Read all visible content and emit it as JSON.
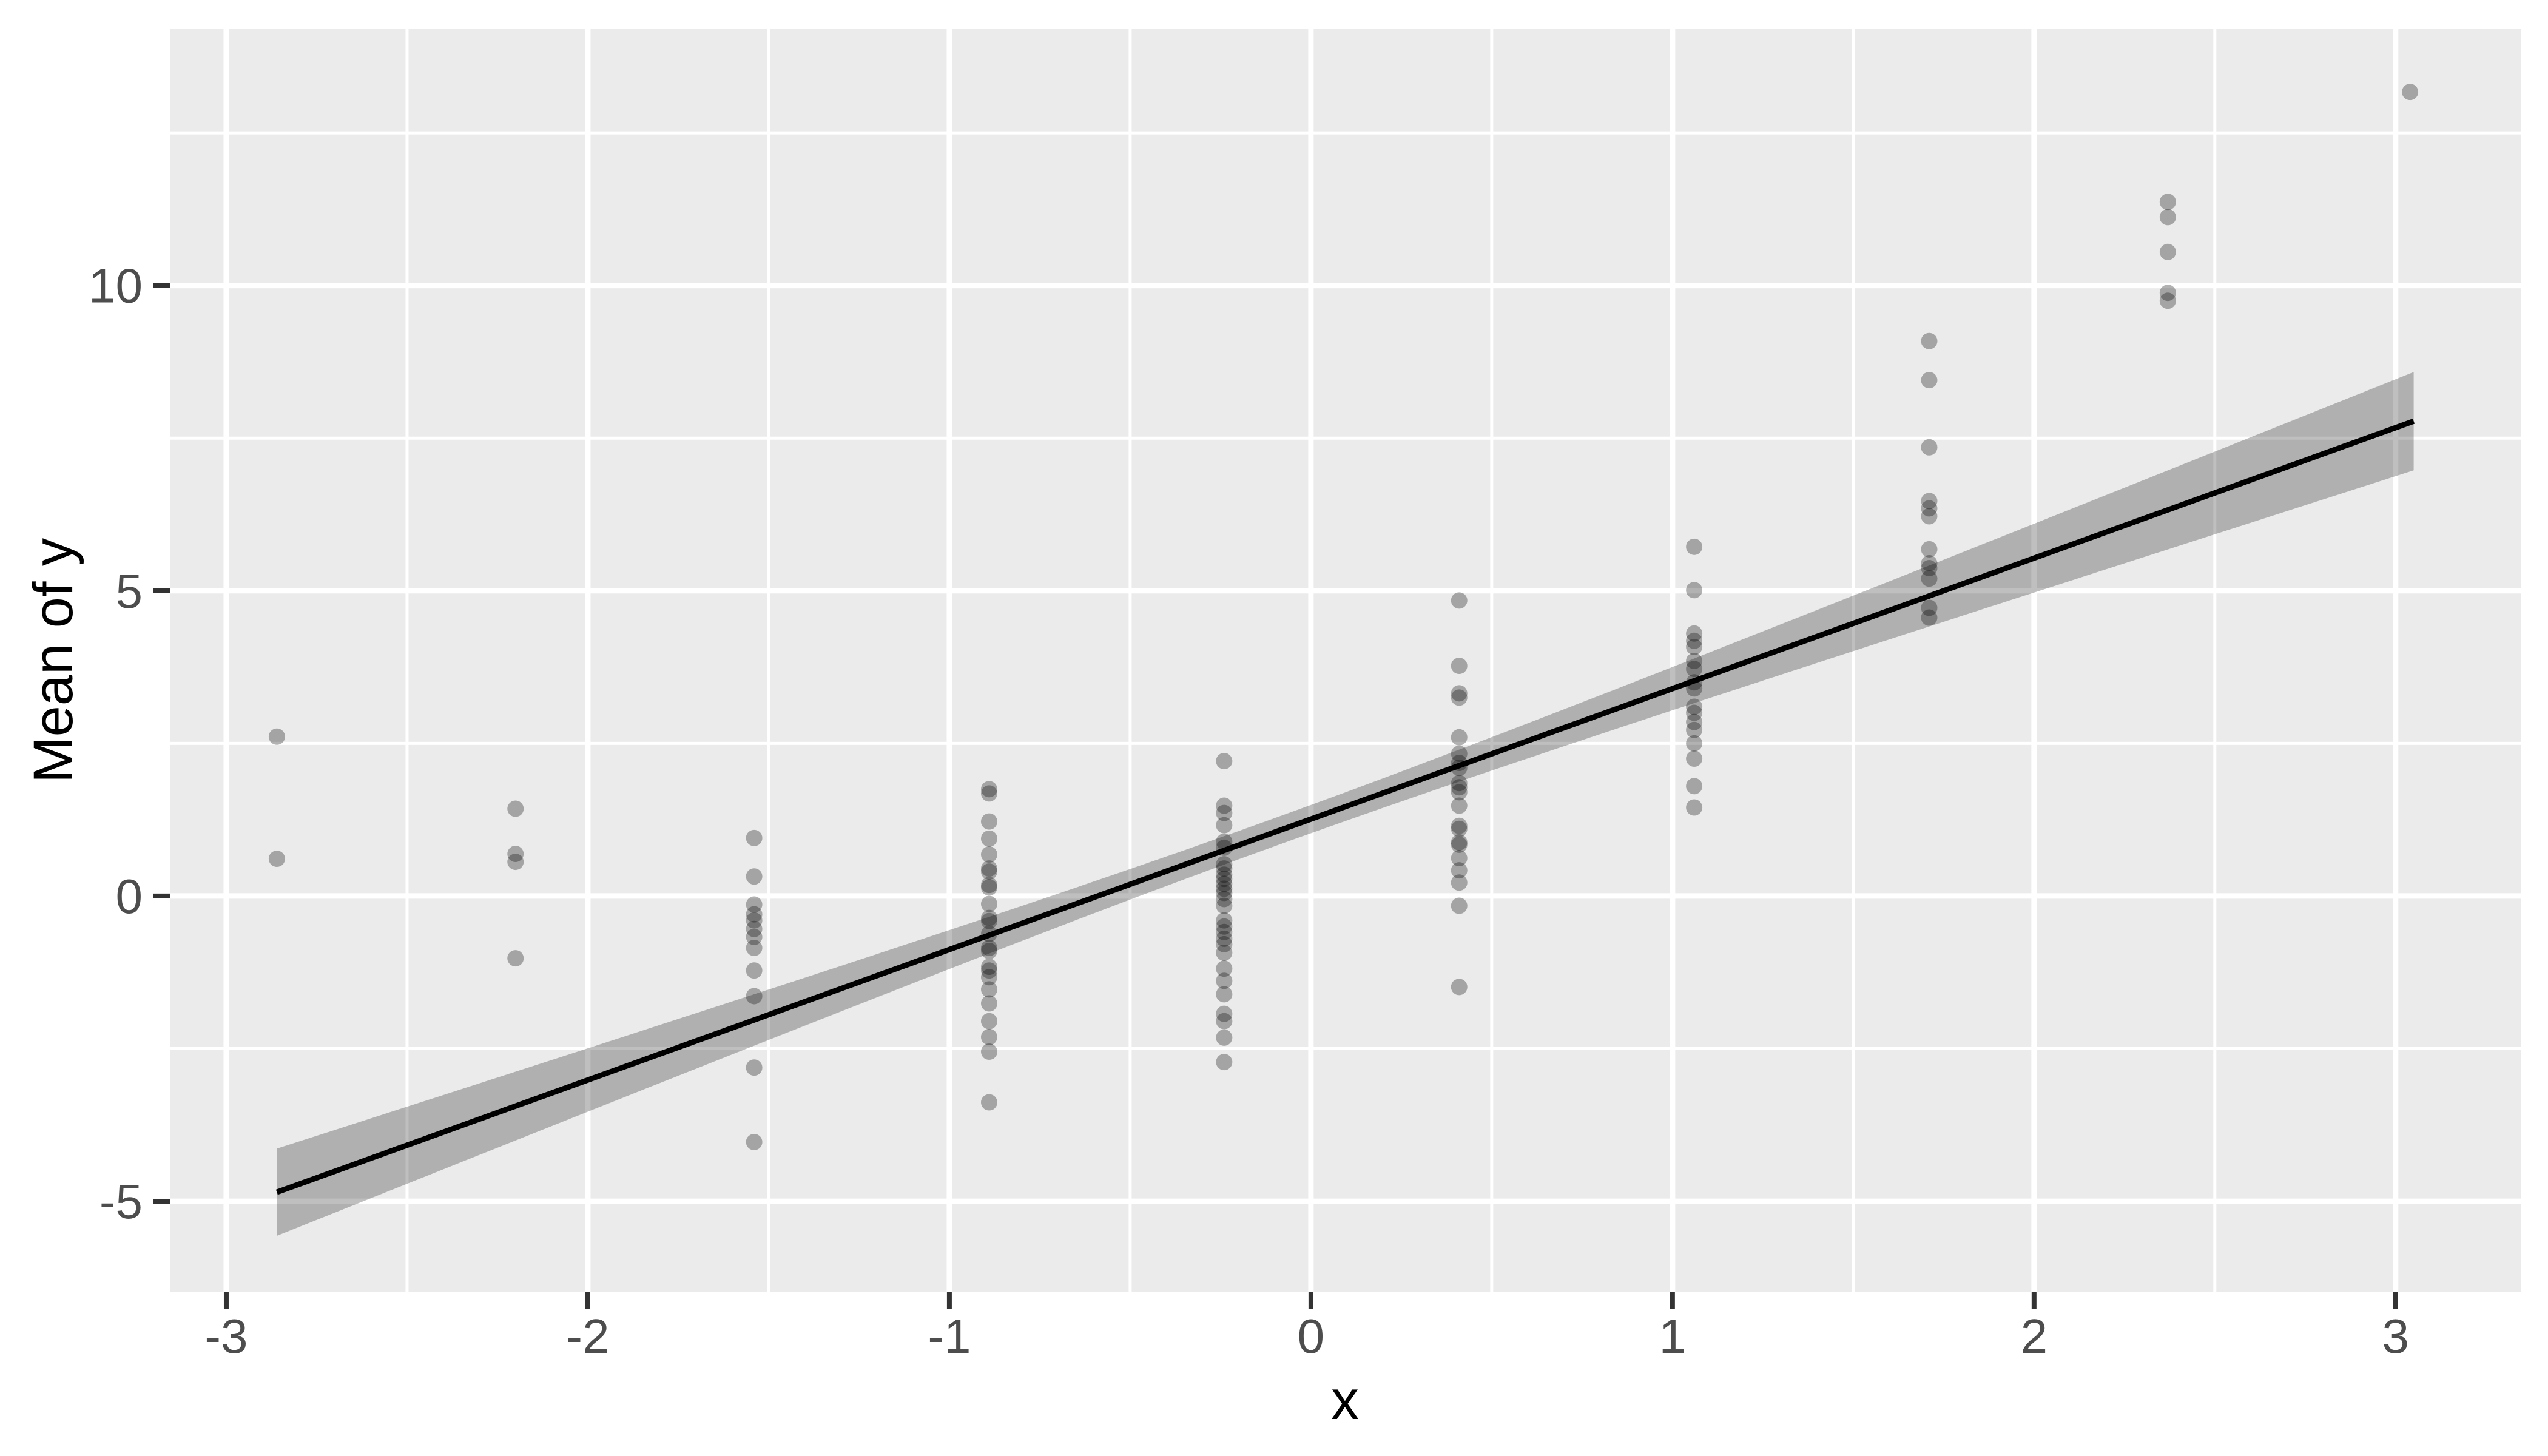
{
  "chart_data": {
    "type": "scatter",
    "title": "",
    "xlabel": "x",
    "ylabel": "Mean of y",
    "xlim": [
      -3.156,
      3.346
    ],
    "ylim": [
      -6.49,
      14.2
    ],
    "x_ticks": [
      -3,
      -2,
      -1,
      0,
      1,
      2,
      3
    ],
    "y_ticks": [
      -5,
      0,
      5,
      10
    ],
    "x_minor_ticks": [
      -2.5,
      -1.5,
      -0.5,
      0.5,
      1.5,
      2.5
    ],
    "y_minor_ticks": [
      -2.5,
      2.5,
      7.5,
      12.5
    ],
    "grid": true,
    "legend": "none",
    "series": [
      {
        "name": "observations",
        "clusters": [
          {
            "x": -2.86,
            "ys": [
              2.61,
              0.61
            ]
          },
          {
            "x": -2.2,
            "ys": [
              1.43,
              0.69,
              0.56,
              -1.02
            ]
          },
          {
            "x": -1.54,
            "ys": [
              0.95,
              0.32,
              -0.14,
              -0.3,
              -0.4,
              -0.54,
              -0.67,
              -0.85,
              -1.22,
              -1.64,
              -2.81,
              -4.03
            ]
          },
          {
            "x": -0.89,
            "ys": [
              1.75,
              1.68,
              1.22,
              0.94,
              0.68,
              0.45,
              0.4,
              0.18,
              0.14,
              -0.13,
              -0.36,
              -0.41,
              -0.62,
              -0.85,
              -0.9,
              -1.16,
              -1.22,
              -1.33,
              -1.53,
              -1.76,
              -2.05,
              -2.31,
              -2.55,
              -3.38
            ]
          },
          {
            "x": -0.24,
            "ys": [
              2.21,
              1.48,
              1.36,
              1.16,
              0.89,
              0.79,
              0.52,
              0.45,
              0.35,
              0.28,
              0.2,
              0.12,
              0.05,
              -0.05,
              -0.16,
              -0.4,
              -0.5,
              -0.59,
              -0.7,
              -0.79,
              -0.93,
              -1.19,
              -1.39,
              -1.61,
              -1.93,
              -2.05,
              -2.32,
              -2.72
            ]
          },
          {
            "x": 0.41,
            "ys": [
              4.84,
              3.77,
              3.32,
              3.25,
              2.6,
              2.33,
              2.18,
              2.1,
              1.85,
              1.78,
              1.7,
              1.48,
              1.15,
              1.1,
              0.88,
              0.84,
              0.62,
              0.42,
              0.22,
              -0.16,
              -1.49
            ]
          },
          {
            "x": 1.06,
            "ys": [
              5.72,
              5.01,
              4.3,
              4.18,
              4.08,
              3.85,
              3.72,
              3.5,
              3.4,
              3.1,
              3.0,
              2.85,
              2.72,
              2.5,
              2.25,
              1.8,
              1.45
            ]
          },
          {
            "x": 1.71,
            "ys": [
              9.09,
              8.45,
              7.35,
              6.47,
              6.35,
              6.22,
              5.68,
              5.45,
              5.37,
              5.2,
              4.72,
              4.56
            ]
          },
          {
            "x": 2.37,
            "ys": [
              11.37,
              11.12,
              10.55,
              9.88,
              9.75
            ]
          },
          {
            "x": 3.04,
            "ys": [
              13.17
            ]
          }
        ]
      }
    ],
    "regression_line": {
      "intercept": 1.26,
      "slope": 2.137,
      "x_start": -2.86,
      "x_end": 3.05
    },
    "confidence_band": {
      "base_half_width": 0.23,
      "center_x": -0.1,
      "growth_per_unit": 0.245,
      "x_start": -2.86,
      "x_end": 3.05
    }
  },
  "style": {
    "panel_bg": "#EBEBEB",
    "grid_color": "#FFFFFF",
    "point_color": "#000000",
    "point_alpha": 0.3,
    "band_color": "#000000",
    "band_alpha": 0.25,
    "line_color": "#000000",
    "tick_mark_color": "#333333",
    "tick_label_color": "#4D4D4D",
    "axis_title_color": "#000000"
  }
}
